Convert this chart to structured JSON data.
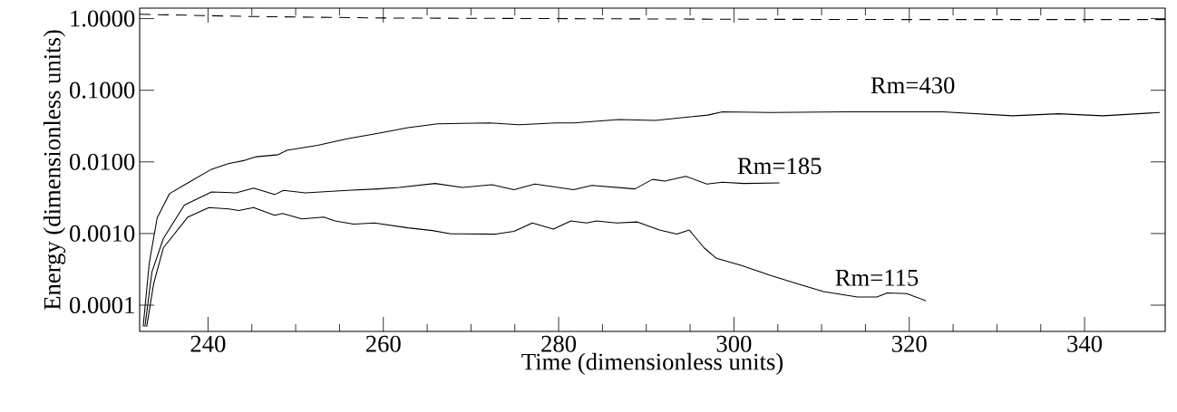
{
  "chart_data": {
    "type": "line",
    "xlabel": "Time (dimensionless units)",
    "ylabel": "Energy (dimensionless units)",
    "log": "y",
    "grid": false,
    "legend": false,
    "marker": "none",
    "xlim": [
      232.2,
      349.2
    ],
    "ylim": [
      4.3e-05,
      1.4
    ],
    "xticks": [
      240,
      260,
      280,
      300,
      320,
      340
    ],
    "yticks": [
      {
        "value": 1,
        "label": "1.0000"
      },
      {
        "value": 0.1,
        "label": "0.1000"
      },
      {
        "value": 0.01,
        "label": "0.0100"
      },
      {
        "value": 0.001,
        "label": "0.0010"
      },
      {
        "value": 0.0001,
        "label": "0.0001"
      }
    ],
    "series": [
      {
        "name": "Rm=430",
        "color": "#000000",
        "line_style": "solid",
        "x": [
          232.6,
          233.3,
          234.2,
          235.6,
          237.7,
          240.4,
          242.4,
          244.2,
          245.5,
          248,
          249,
          252.5,
          255.9,
          260.1,
          262.8,
          266.2,
          272.1,
          275.5,
          279.7,
          281.7,
          286.9,
          291.0,
          297.0,
          298.7,
          304.2,
          312.8,
          320.4,
          323.8,
          331.8,
          337.0,
          342.1,
          348.6
        ],
        "values": [
          5e-05,
          0.00039,
          0.00166,
          0.0036,
          0.0051,
          0.0079,
          0.0095,
          0.0105,
          0.0118,
          0.0126,
          0.0145,
          0.017,
          0.021,
          0.026,
          0.03,
          0.034,
          0.035,
          0.033,
          0.035,
          0.035,
          0.039,
          0.038,
          0.045,
          0.05,
          0.049,
          0.05,
          0.05,
          0.05,
          0.044,
          0.047,
          0.044,
          0.049
        ]
      },
      {
        "name": "Rm=185",
        "color": "#000000",
        "line_style": "solid",
        "x": [
          232.8,
          233.6,
          234.9,
          237.3,
          240.4,
          243.2,
          245.2,
          247.6,
          248.6,
          251.1,
          255.9,
          259.4,
          261.8,
          265.9,
          269.0,
          272.4,
          274.9,
          277.3,
          281.7,
          283.8,
          288.7,
          290.7,
          292.1,
          294.5,
          296.9,
          298.7,
          301.1,
          305.2
        ],
        "values": [
          5e-05,
          0.00029,
          0.00085,
          0.0025,
          0.0038,
          0.0037,
          0.0043,
          0.0035,
          0.004,
          0.0037,
          0.004,
          0.0042,
          0.0044,
          0.005,
          0.0044,
          0.0048,
          0.0041,
          0.0049,
          0.0041,
          0.0047,
          0.0042,
          0.0057,
          0.0054,
          0.0063,
          0.0049,
          0.0052,
          0.005,
          0.0051
        ]
      },
      {
        "name": "Rm=115",
        "color": "#000000",
        "line_style": "solid",
        "x": [
          233.0,
          233.8,
          234.9,
          237.7,
          240.1,
          242.4,
          243.5,
          245.2,
          247.6,
          248.5,
          250.7,
          253.2,
          254.5,
          256.6,
          259.0,
          262.8,
          265.6,
          267.7,
          272.8,
          274.9,
          277.0,
          279.4,
          281.4,
          283.2,
          284.3,
          286.6,
          289.0,
          291.5,
          293.5,
          294.9,
          296.6,
          298.0,
          300.8,
          304.2,
          307.2,
          310.2,
          314.1,
          316.3,
          317.5,
          319.7,
          321.9
        ],
        "values": [
          5e-05,
          0.0002,
          0.00063,
          0.0017,
          0.0023,
          0.0022,
          0.0021,
          0.0023,
          0.0018,
          0.0019,
          0.0016,
          0.0017,
          0.0015,
          0.00135,
          0.0014,
          0.0012,
          0.0011,
          0.00099,
          0.00098,
          0.00107,
          0.0014,
          0.00115,
          0.0015,
          0.0014,
          0.0015,
          0.0014,
          0.00145,
          0.00112,
          0.00098,
          0.00112,
          0.00063,
          0.00045,
          0.00036,
          0.00026,
          0.0002,
          0.000155,
          0.00013,
          0.00013,
          0.000148,
          0.000145,
          0.000115
        ]
      },
      {
        "color": "#000000",
        "line_style": "dashed",
        "x": [
          232.2,
          245,
          260,
          280,
          300,
          320,
          349.2
        ],
        "values": [
          1.15,
          1.07,
          1.02,
          1.0,
          0.98,
          0.97,
          0.97
        ]
      }
    ]
  }
}
